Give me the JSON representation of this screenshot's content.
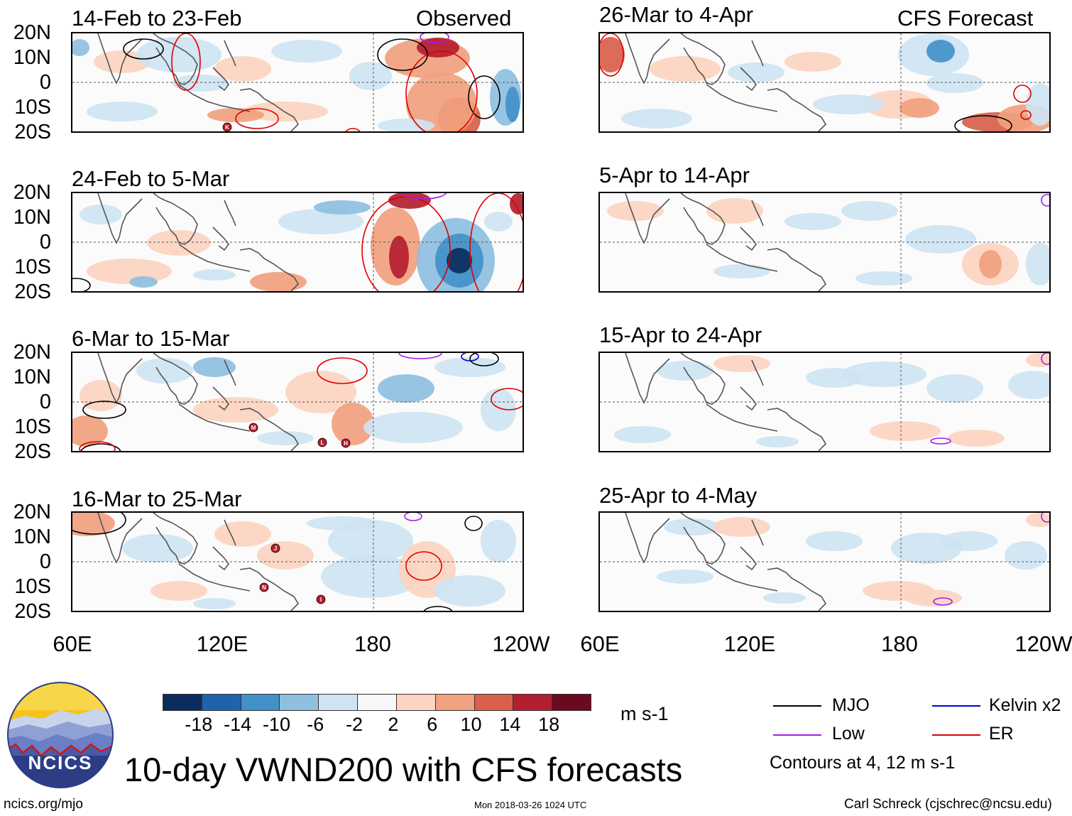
{
  "panels": [
    {
      "title": "14-Feb to 23-Feb",
      "tag": "Observed",
      "side": "left",
      "row": 0
    },
    {
      "title": "24-Feb to 5-Mar",
      "tag": "",
      "side": "left",
      "row": 1
    },
    {
      "title": "6-Mar to 15-Mar",
      "tag": "",
      "side": "left",
      "row": 2
    },
    {
      "title": "16-Mar to 25-Mar",
      "tag": "",
      "side": "left",
      "row": 3
    },
    {
      "title": "26-Mar to 4-Apr",
      "tag": "CFS Forecast",
      "side": "right",
      "row": 0
    },
    {
      "title": "5-Apr to 14-Apr",
      "tag": "",
      "side": "right",
      "row": 1
    },
    {
      "title": "15-Apr to 24-Apr",
      "tag": "",
      "side": "right",
      "row": 2
    },
    {
      "title": "25-Apr to 4-May",
      "tag": "",
      "side": "right",
      "row": 3
    }
  ],
  "lat_labels": [
    "20N",
    "10N",
    "0",
    "10S",
    "20S"
  ],
  "lon_labels": [
    "60E",
    "120E",
    "180",
    "120W"
  ],
  "storm_labels": [
    "K",
    "M",
    "L",
    "H",
    "J",
    "N",
    "I"
  ],
  "colorbar": {
    "colors": [
      "#0c2c5e",
      "#1f63ad",
      "#4391c9",
      "#8ebfdf",
      "#cee4f2",
      "#f7f7f7",
      "#fcd4c0",
      "#f1a17e",
      "#d9604c",
      "#b51e2e",
      "#6b0a1f"
    ],
    "ticks": [
      "-18",
      "-14",
      "-10",
      "-6",
      "-2",
      "2",
      "6",
      "10",
      "14",
      "18"
    ],
    "unit": "m s-1"
  },
  "legend": {
    "items": [
      {
        "label": "MJO",
        "color": "#000000"
      },
      {
        "label": "Low",
        "color": "#a020f0"
      },
      {
        "label": "Kelvin x2",
        "color": "#0000dd"
      },
      {
        "label": "ER",
        "color": "#dd0000"
      }
    ],
    "note": "Contours at 4, 12 m s-1"
  },
  "title": "10-day VWND200 with CFS forecasts",
  "logo_text": "NCICS",
  "footer": {
    "url": "ncics.org/mjo",
    "timestamp": "Mon 2018-03-26 1024 UTC",
    "credit": "Carl Schreck (cjschrec@ncsu.edu)"
  },
  "colors": {
    "mjo": "#000000",
    "low": "#a020f0",
    "kelvin": "#0000dd",
    "er": "#dd0000",
    "coast": "#555555"
  }
}
